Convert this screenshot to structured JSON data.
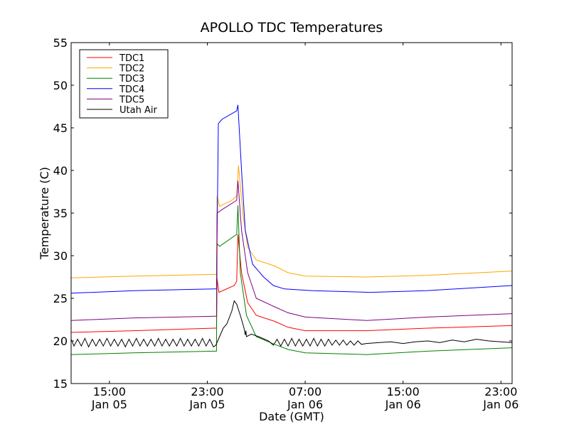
{
  "chart_data": {
    "type": "line",
    "title": "APOLLO TDC Temperatures",
    "xlabel": "Date (GMT)",
    "ylabel": "Temperature (C)",
    "x_units": "hours since Jan 05 00:00 GMT",
    "xlim": [
      11.87,
      47.91
    ],
    "ylim": [
      15,
      55
    ],
    "grid": false,
    "legend_position": "top-left",
    "yticks": [
      15,
      20,
      25,
      30,
      35,
      40,
      45,
      50,
      55
    ],
    "xticks": [
      {
        "value": 15,
        "line1": "15:00",
        "line2": "Jan 05"
      },
      {
        "value": 23,
        "line1": "23:00",
        "line2": "Jan 05"
      },
      {
        "value": 31,
        "line1": "07:00",
        "line2": "Jan 06"
      },
      {
        "value": 39,
        "line1": "15:00",
        "line2": "Jan 06"
      },
      {
        "value": 47,
        "line1": "23:00",
        "line2": "Jan 06"
      }
    ],
    "series": [
      {
        "name": "TDC1",
        "color": "#ff0000",
        "x": [
          11.87,
          17,
          23.6,
          23.75,
          23.8,
          23.95,
          25.2,
          25.4,
          25.5,
          25.8,
          26.3,
          27,
          28.5,
          29.6,
          31,
          36,
          41,
          47.91
        ],
        "y": [
          21.0,
          21.2,
          21.5,
          21.5,
          27.3,
          25.7,
          26.5,
          27.0,
          32.5,
          28.0,
          24.5,
          23.0,
          22.3,
          21.6,
          21.2,
          21.2,
          21.5,
          21.8
        ]
      },
      {
        "name": "TDC2",
        "color": "#ffa500",
        "x": [
          11.87,
          17,
          23.6,
          23.75,
          23.8,
          24.0,
          25.0,
          25.4,
          25.55,
          25.9,
          26.3,
          27,
          28.5,
          29.6,
          31,
          36,
          41,
          47.91
        ],
        "y": [
          27.4,
          27.6,
          27.8,
          27.8,
          37.0,
          35.8,
          36.5,
          37.0,
          40.6,
          35.0,
          31.0,
          29.5,
          28.8,
          28.0,
          27.6,
          27.5,
          27.7,
          28.2
        ]
      },
      {
        "name": "TDC3",
        "color": "#008000",
        "x": [
          11.87,
          17,
          23.6,
          23.75,
          23.8,
          24.0,
          25.4,
          25.5,
          25.7,
          26.2,
          27,
          28.5,
          29.6,
          31,
          36,
          41,
          47.91
        ],
        "y": [
          18.4,
          18.6,
          18.8,
          18.8,
          31.4,
          31.1,
          32.5,
          35.9,
          28.0,
          23.0,
          20.5,
          19.6,
          19.0,
          18.6,
          18.4,
          18.8,
          19.2
        ]
      },
      {
        "name": "TDC4",
        "color": "#0000ff",
        "x": [
          11.87,
          17,
          23.6,
          23.75,
          23.9,
          24.2,
          25.4,
          25.5,
          25.8,
          26.1,
          26.7,
          27.6,
          28.4,
          29.3,
          31.6,
          36.3,
          40.9,
          47.91
        ],
        "y": [
          25.6,
          25.9,
          26.1,
          26.1,
          45.5,
          46.0,
          47.0,
          47.7,
          40.0,
          33.0,
          29.0,
          27.5,
          26.5,
          26.1,
          25.9,
          25.7,
          25.9,
          26.5
        ]
      },
      {
        "name": "TDC5",
        "color": "#800080",
        "x": [
          11.87,
          17,
          23.6,
          23.75,
          23.8,
          24.2,
          25.4,
          25.5,
          25.8,
          26.3,
          27,
          28.5,
          29.6,
          31,
          36,
          41,
          47.91
        ],
        "y": [
          22.4,
          22.7,
          22.9,
          22.9,
          35.0,
          35.4,
          36.5,
          38.8,
          33.0,
          28.0,
          25.0,
          24.0,
          23.3,
          22.8,
          22.4,
          22.8,
          23.2
        ]
      },
      {
        "name": "Utah Air",
        "color": "#000000",
        "x": [
          11.87,
          12.1,
          12.4,
          12.7,
          13.0,
          13.3,
          13.6,
          13.9,
          14.2,
          14.5,
          14.8,
          15.1,
          15.4,
          15.7,
          16.0,
          16.3,
          16.6,
          16.9,
          17.2,
          17.5,
          17.8,
          18.1,
          18.4,
          18.7,
          19.0,
          19.3,
          19.6,
          19.9,
          20.2,
          20.5,
          20.8,
          21.1,
          21.4,
          21.7,
          22.0,
          22.3,
          22.6,
          22.9,
          23.2,
          23.5,
          23.7,
          24.0,
          24.3,
          24.6,
          25.0,
          25.2,
          25.4,
          25.7,
          26.0,
          26.1,
          26.15,
          26.2,
          26.6,
          27.2,
          28.0,
          28.4,
          28.7,
          29.0,
          29.3,
          29.6,
          29.9,
          30.2,
          30.5,
          30.8,
          31.1,
          31.4,
          31.7,
          32.0,
          32.3,
          32.6,
          32.9,
          33.2,
          33.5,
          33.8,
          34.1,
          34.4,
          34.7,
          35.0,
          35.3,
          35.6,
          36.0,
          37.0,
          38.0,
          39.0,
          40.0,
          41.0,
          42.0,
          43.0,
          44.0,
          45.0,
          46.0,
          47.0,
          47.91
        ],
        "y": [
          20.2,
          19.4,
          20.2,
          19.4,
          20.3,
          19.3,
          20.2,
          19.4,
          20.2,
          19.4,
          20.3,
          19.4,
          20.2,
          19.4,
          20.2,
          19.3,
          20.2,
          19.4,
          20.3,
          19.4,
          20.2,
          19.4,
          20.2,
          19.4,
          20.3,
          19.4,
          20.2,
          19.4,
          20.2,
          19.4,
          20.3,
          19.4,
          20.2,
          19.4,
          20.2,
          19.4,
          20.3,
          19.4,
          20.2,
          19.3,
          19.5,
          20.5,
          21.5,
          22.0,
          23.5,
          24.7,
          24.3,
          23.0,
          21.5,
          20.7,
          21.2,
          20.5,
          20.8,
          20.5,
          20.0,
          19.5,
          20.2,
          19.4,
          20.2,
          19.4,
          20.3,
          19.4,
          20.2,
          19.4,
          20.2,
          19.4,
          20.3,
          19.4,
          20.2,
          19.4,
          20.2,
          19.5,
          20.1,
          19.5,
          20.1,
          19.5,
          20.0,
          19.5,
          20.0,
          19.6,
          19.7,
          19.8,
          19.9,
          19.7,
          19.9,
          20.0,
          19.8,
          20.1,
          19.9,
          20.2,
          20.0,
          19.9,
          19.8
        ]
      }
    ]
  }
}
